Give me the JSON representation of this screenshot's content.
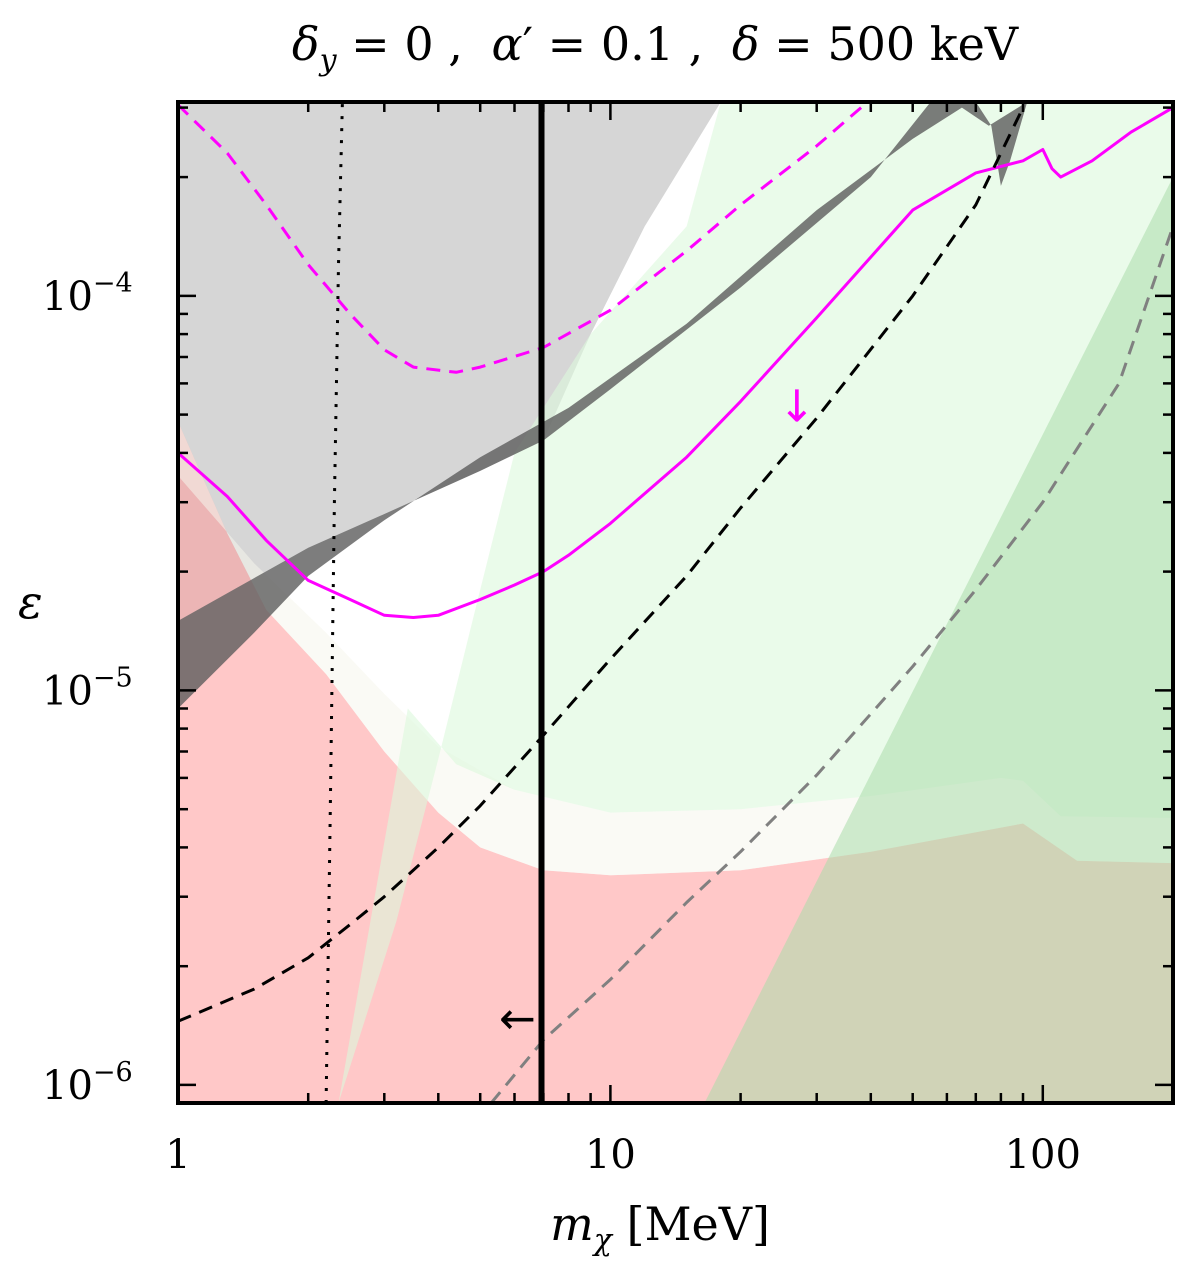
{
  "chart_data": {
    "type": "line",
    "title": {
      "delta_y_symbol": "δ",
      "delta_y_sub": "y",
      "delta_y_value": " = 0 ,",
      "alpha_symbol": "α",
      "alpha_prime": "′",
      "alpha_value": " = 0.1 ,",
      "delta_symbol": "δ",
      "delta_value": " = 500 keV"
    },
    "xlabel": {
      "symbol": "m",
      "sub": "χ",
      "unit": " [MeV]"
    },
    "ylabel": "ε",
    "x_scale": "log",
    "y_scale": "log",
    "xlim": [
      1,
      200
    ],
    "ylim": [
      9e-07,
      0.00031
    ],
    "x_ticks": [
      {
        "value": 1,
        "label": "1"
      },
      {
        "value": 10,
        "label": "10"
      },
      {
        "value": 100,
        "label": "100"
      }
    ],
    "y_ticks": [
      {
        "value": 1e-06,
        "base": "10",
        "exp": "−6"
      },
      {
        "value": 1e-05,
        "base": "10",
        "exp": "−5"
      },
      {
        "value": 0.0001,
        "base": "10",
        "exp": "−4"
      }
    ],
    "grid": false,
    "colors": {
      "magenta": "#ff00ff",
      "black": "#000000",
      "gray_dashed": "#808080",
      "gray_region": "#b4b4b4",
      "dark_band": "#5c5c5c",
      "red_region": "#ff9a9a",
      "light_green": "#e9fce9",
      "green_region": "#b4e2b4"
    },
    "regions": [
      {
        "id": "gray-excluded",
        "color": "#b4b4b4",
        "opacity": 0.55,
        "points": [
          [
            1,
            0.00031
          ],
          [
            2.6,
            0.00031
          ],
          [
            18,
            0.00031
          ],
          [
            12,
            0.00015
          ],
          [
            9,
            8e-05
          ],
          [
            7,
            4.3e-05
          ],
          [
            5,
            3.6e-05
          ],
          [
            3,
            2.8e-05
          ],
          [
            2,
            2.3e-05
          ],
          [
            1,
            1.5e-05
          ]
        ]
      },
      {
        "id": "red-excluded",
        "color": "#ff9a9a",
        "opacity": 0.55,
        "points": [
          [
            1,
            4.8e-05
          ],
          [
            1.3,
            2.5e-05
          ],
          [
            1.6,
            1.6e-05
          ],
          [
            2.2,
            1.1e-05
          ],
          [
            3,
            7e-06
          ],
          [
            4,
            4.9e-06
          ],
          [
            5,
            4e-06
          ],
          [
            7,
            3.5e-06
          ],
          [
            10,
            3.4e-06
          ],
          [
            20,
            3.5e-06
          ],
          [
            40,
            3.9e-06
          ],
          [
            90,
            4.6e-06
          ],
          [
            120,
            3.7e-06
          ],
          [
            200,
            3.65e-06
          ],
          [
            200,
            9e-07
          ],
          [
            1,
            9e-07
          ]
        ]
      },
      {
        "id": "cream-band",
        "color": "#f6f6ec",
        "opacity": 0.55,
        "points": [
          [
            1,
            3.5e-05
          ],
          [
            1.5,
            2.1e-05
          ],
          [
            2.2,
            1.4e-05
          ],
          [
            3,
            9.8e-06
          ],
          [
            4,
            7.2e-06
          ],
          [
            6,
            5.6e-06
          ],
          [
            10,
            4.9e-06
          ],
          [
            20,
            5e-06
          ],
          [
            40,
            5.4e-06
          ],
          [
            80,
            6e-06
          ],
          [
            90,
            5.9e-06
          ],
          [
            110,
            4.8e-06
          ],
          [
            200,
            4.75e-06
          ],
          [
            200,
            3.65e-06
          ],
          [
            120,
            3.7e-06
          ],
          [
            90,
            4.6e-06
          ],
          [
            40,
            3.9e-06
          ],
          [
            20,
            3.5e-06
          ],
          [
            10,
            3.4e-06
          ],
          [
            7,
            3.5e-06
          ],
          [
            5,
            4e-06
          ],
          [
            4,
            4.9e-06
          ],
          [
            3,
            7e-06
          ],
          [
            2.2,
            1.1e-05
          ],
          [
            1.6,
            1.6e-05
          ],
          [
            1.3,
            2.5e-05
          ],
          [
            1,
            4.8e-05
          ]
        ]
      },
      {
        "id": "light-green-excluded",
        "color": "#dcf8dc",
        "opacity": 0.6,
        "points": [
          [
            2.35,
            9e-07
          ],
          [
            3.2,
            2.6e-06
          ],
          [
            4.0,
            6.7e-06
          ],
          [
            5.0,
            1.8e-05
          ],
          [
            6.0,
            4e-05
          ],
          [
            9.0,
            8e-05
          ],
          [
            15.0,
            0.00015
          ],
          [
            18,
            0.00031
          ],
          [
            200,
            0.00031
          ],
          [
            200,
            4.75e-06
          ],
          [
            110,
            4.8e-06
          ],
          [
            90,
            5.9e-06
          ],
          [
            80,
            6e-06
          ],
          [
            40,
            5.4e-06
          ],
          [
            20,
            5e-06
          ],
          [
            10,
            4.9e-06
          ],
          [
            6,
            5.6e-06
          ],
          [
            4.4,
            6.5e-06
          ],
          [
            3.4,
            9e-06
          ],
          [
            2.35,
            9e-07
          ]
        ]
      },
      {
        "id": "green-excluded",
        "color": "#a9dca9",
        "opacity": 0.55,
        "points": [
          [
            16.5,
            9e-07
          ],
          [
            200,
            0.0002
          ],
          [
            200,
            9e-07
          ]
        ]
      },
      {
        "id": "relic-band",
        "color": "#5c5c5c",
        "opacity": 0.8,
        "points": [
          [
            1,
            1.5e-05
          ],
          [
            2,
            2.3e-05
          ],
          [
            3,
            2.8e-05
          ],
          [
            5,
            3.6e-05
          ],
          [
            7,
            4.3e-05
          ],
          [
            10,
            5.8e-05
          ],
          [
            20,
            0.000105
          ],
          [
            40,
            0.0002
          ],
          [
            55,
            0.00031
          ],
          [
            70,
            0.00031
          ],
          [
            76,
            0.00027
          ],
          [
            80,
            0.00019
          ],
          [
            84,
            0.00022
          ],
          [
            92,
            0.00031
          ],
          [
            75,
            0.00027
          ],
          [
            65,
            0.0003
          ],
          [
            50,
            0.00025
          ],
          [
            30,
            0.000165
          ],
          [
            15,
            8.5e-05
          ],
          [
            8,
            5.2e-05
          ],
          [
            5,
            3.9e-05
          ],
          [
            3,
            2.7e-05
          ],
          [
            2,
            1.95e-05
          ],
          [
            1.5,
            1.4e-05
          ],
          [
            1,
            9e-06
          ]
        ]
      }
    ],
    "series": [
      {
        "id": "magenta-solid",
        "style": "solid",
        "color": "#ff00ff",
        "width": 3,
        "x": [
          1,
          1.3,
          1.6,
          2,
          2.5,
          3,
          3.5,
          4,
          5,
          6,
          7,
          8,
          10,
          15,
          20,
          30,
          50,
          70,
          90,
          100,
          105,
          110,
          130,
          160,
          200
        ],
        "y": [
          4e-05,
          3.1e-05,
          2.4e-05,
          1.9e-05,
          1.7e-05,
          1.55e-05,
          1.53e-05,
          1.55e-05,
          1.7e-05,
          1.85e-05,
          2e-05,
          2.2e-05,
          2.65e-05,
          3.9e-05,
          5.4e-05,
          8.8e-05,
          0.000165,
          0.000205,
          0.00022,
          0.000235,
          0.00021,
          0.0002,
          0.00022,
          0.00026,
          0.0003
        ]
      },
      {
        "id": "magenta-dashed",
        "style": "dashed",
        "color": "#ff00ff",
        "width": 3,
        "x": [
          1,
          1.3,
          1.6,
          2,
          2.5,
          3,
          3.5,
          4.4,
          5,
          7,
          10,
          15,
          20,
          30,
          38
        ],
        "y": [
          0.000305,
          0.00023,
          0.00017,
          0.00012,
          9e-05,
          7.3e-05,
          6.6e-05,
          6.4e-05,
          6.6e-05,
          7.4e-05,
          9.2e-05,
          0.00013,
          0.00017,
          0.00024,
          0.0003
        ]
      },
      {
        "id": "black-dashed",
        "style": "dashed",
        "color": "#000000",
        "width": 3,
        "x": [
          1,
          1.5,
          2,
          2.5,
          3,
          4,
          5,
          7,
          10,
          15,
          20,
          30,
          50,
          70,
          90
        ],
        "y": [
          1.45e-06,
          1.75e-06,
          2.1e-06,
          2.55e-06,
          3e-06,
          4e-06,
          5.1e-06,
          7.7e-06,
          1.2e-05,
          1.95e-05,
          2.9e-05,
          4.9e-05,
          0.0001,
          0.00017,
          0.0003
        ]
      },
      {
        "id": "gray-dashed",
        "style": "dashed",
        "color": "#808080",
        "width": 3,
        "x": [
          5.3,
          7,
          10,
          15,
          20,
          30,
          50,
          70,
          100,
          150,
          200
        ],
        "y": [
          9e-07,
          1.3e-06,
          1.85e-06,
          2.9e-06,
          3.9e-06,
          6.1e-06,
          1.15e-05,
          1.8e-05,
          3e-05,
          6e-05,
          0.00015
        ]
      },
      {
        "id": "black-dotted",
        "style": "dotted",
        "color": "#000000",
        "width": 3,
        "x": [
          2.2,
          2.25,
          2.3,
          2.35,
          2.4
        ],
        "y": [
          9e-07,
          5e-06,
          3e-05,
          0.00012,
          0.00031
        ]
      },
      {
        "id": "black-vertical",
        "style": "solid",
        "color": "#000000",
        "width": 6,
        "x": [
          6.93,
          6.93
        ],
        "y": [
          9e-07,
          0.00031
        ]
      }
    ],
    "annotations": [
      {
        "id": "magenta-down-arrow",
        "text": "↓",
        "x": 27,
        "y": 4.8e-05,
        "color": "#ff00ff"
      },
      {
        "id": "black-left-arrow",
        "text": "←",
        "x": 6.1,
        "y": 1.35e-06,
        "color": "#000000"
      }
    ]
  }
}
